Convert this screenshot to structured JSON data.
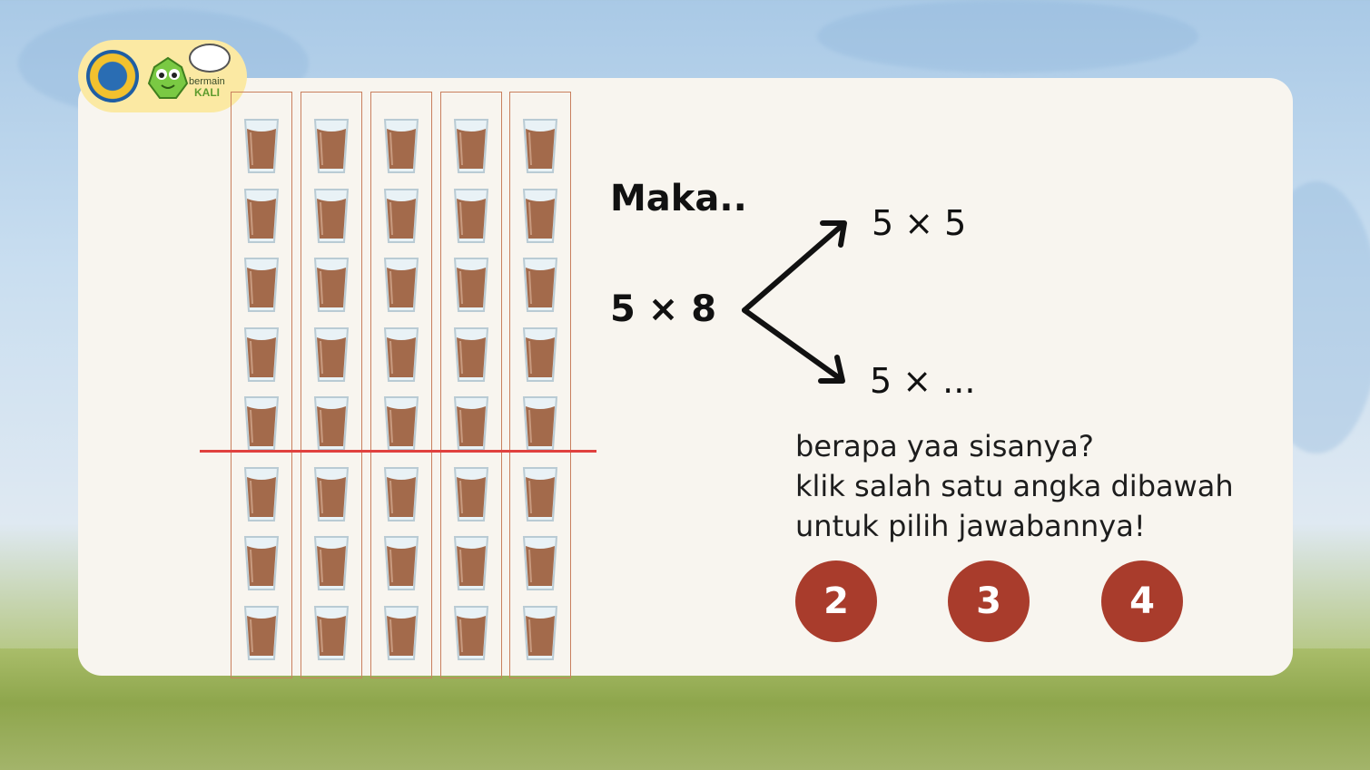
{
  "branding": {
    "text_top": "bermain",
    "text_bottom": "KALI"
  },
  "grid": {
    "columns": 5,
    "rows": 8,
    "split_after_row": 5
  },
  "heading": "Maka..",
  "equation": {
    "main": "5 × 8",
    "top": "5 × 5",
    "bottom": "5 × ..."
  },
  "prompt": {
    "line1": "berapa yaa sisanya?",
    "line2": "klik salah satu angka dibawah",
    "line3": "untuk pilih jawabannya!"
  },
  "answers": [
    {
      "label": "2"
    },
    {
      "label": "3"
    },
    {
      "label": "4"
    }
  ],
  "colors": {
    "answer_bg": "#a93c2c",
    "divider": "#e0413f",
    "column_border": "#c9805e",
    "glass_fill": "#a36a4b",
    "logo_pill": "#fbe9a3"
  }
}
